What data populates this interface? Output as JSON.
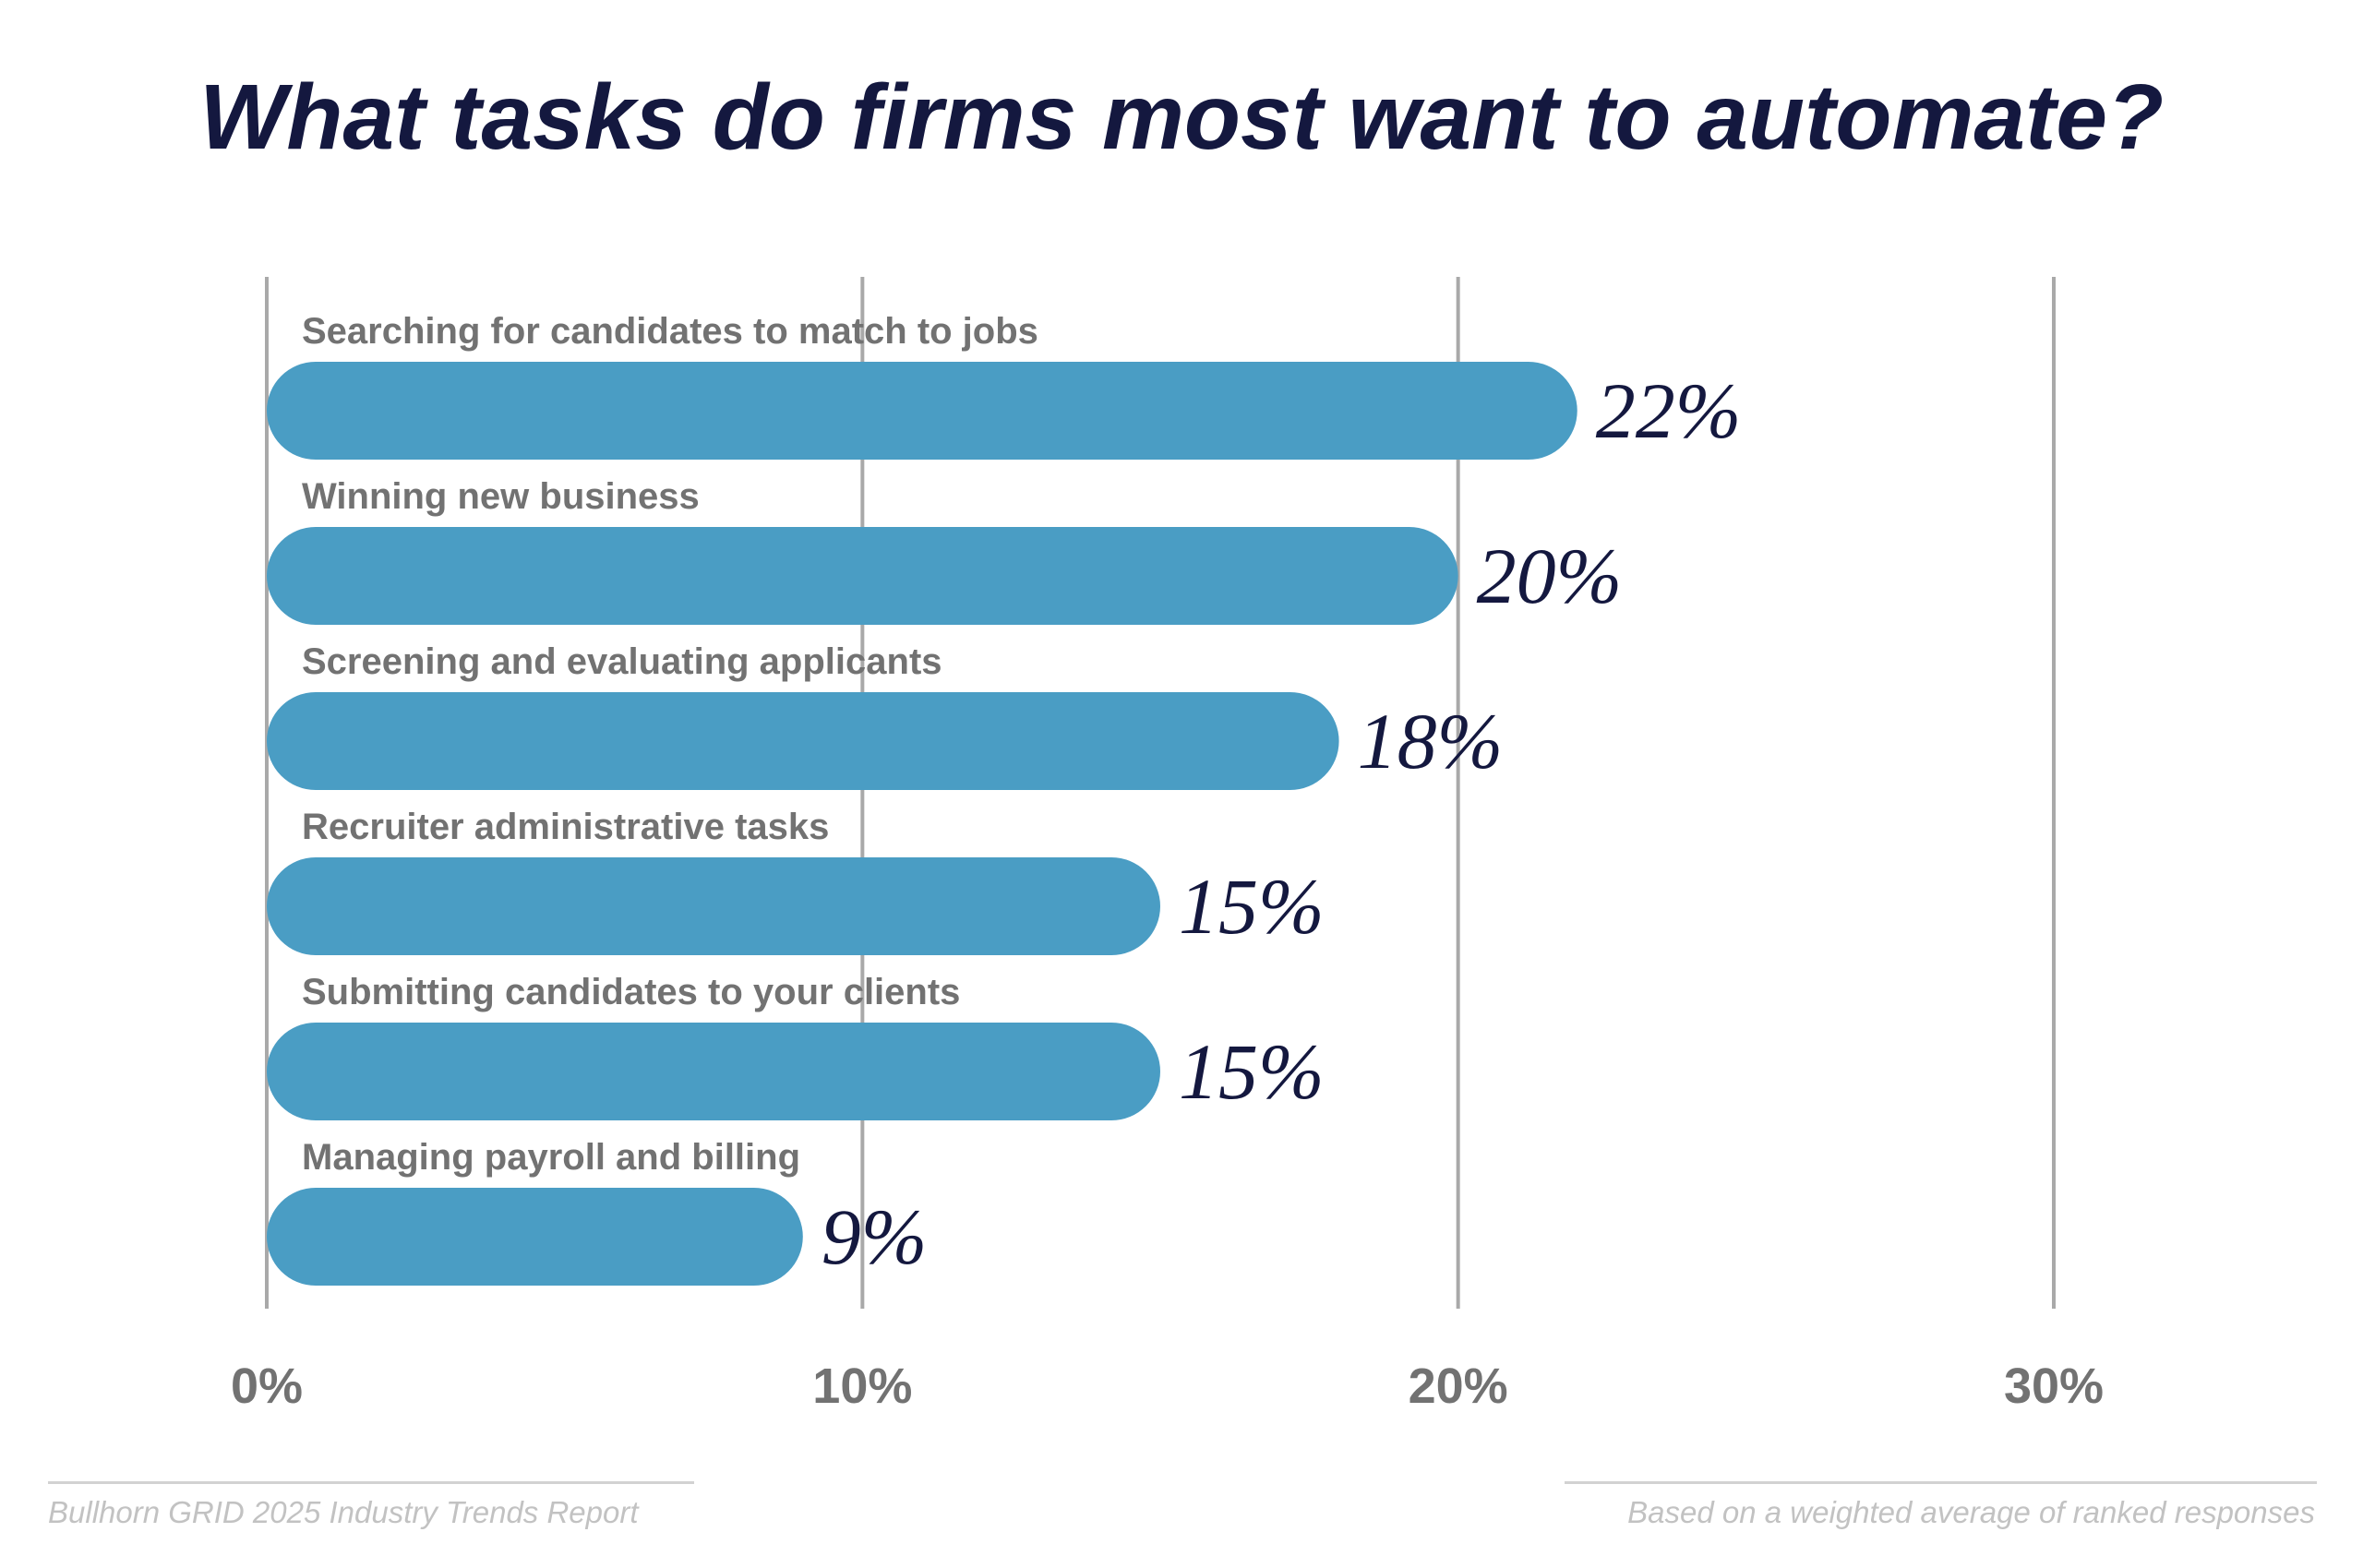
{
  "chart_data": {
    "type": "bar",
    "orientation": "horizontal",
    "title": "What tasks do firms most want to automate?",
    "categories": [
      "Searching for candidates to match to jobs",
      "Winning new business",
      "Screening and evaluating applicants",
      "Recruiter administrative tasks",
      "Submitting candidates to your clients",
      "Managing payroll and billing"
    ],
    "values": [
      22,
      20,
      18,
      15,
      15,
      9
    ],
    "value_labels": [
      "22%",
      "20%",
      "18%",
      "15%",
      "15%",
      "9%"
    ],
    "xlim": [
      0,
      30
    ],
    "x_ticks": [
      0,
      10,
      20,
      30
    ],
    "x_tick_labels": [
      "0%",
      "10%",
      "20%",
      "30%"
    ],
    "grid": "vertical",
    "legend": "none",
    "colors": {
      "bar": "#4a9dc4",
      "title": "#14183f",
      "value_label": "#14183f",
      "category_label": "#727272",
      "gridline": "#a9a9a9"
    }
  },
  "footer": {
    "source": "Bullhorn GRID 2025 Industry Trends Report",
    "note": "Based on a weighted average of ranked responses"
  }
}
